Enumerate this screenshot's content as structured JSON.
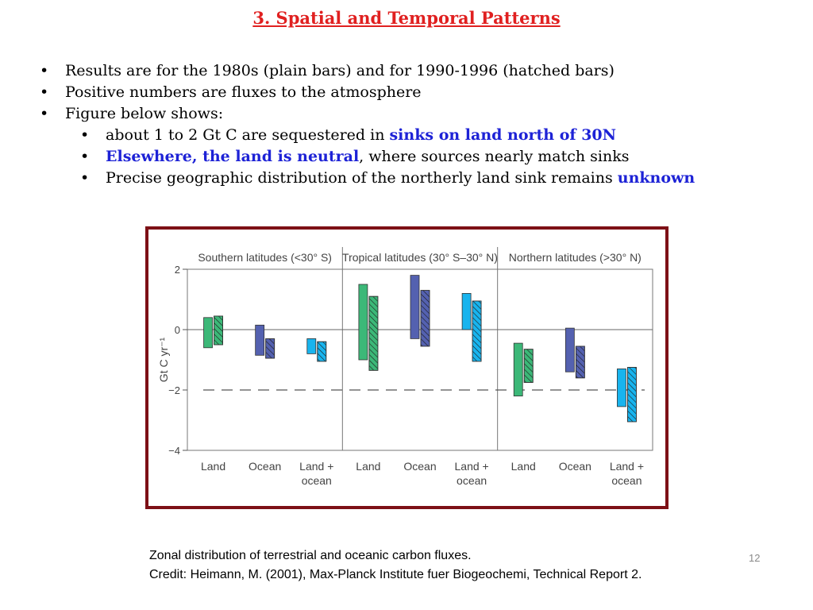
{
  "slide": {
    "title": "3. Spatial and Temporal Patterns",
    "bullets": [
      {
        "parts": [
          {
            "text": "Results are for the 1980s (plain bars) and for 1990-1996 (hatched bars)"
          }
        ]
      },
      {
        "parts": [
          {
            "text": "Positive numbers are fluxes to the atmosphere"
          }
        ]
      },
      {
        "parts": [
          {
            "text": "Figure below shows:"
          }
        ]
      }
    ],
    "sub_bullets": [
      {
        "parts": [
          {
            "text": "about 1 to 2 Gt C are sequestered in  "
          },
          {
            "text": "sinks on land north of 30N",
            "style": "blue"
          }
        ]
      },
      {
        "parts": [
          {
            "text": "Elsewhere, the land is neutral",
            "style": "blue"
          },
          {
            "text": ", where sources nearly match  sinks"
          }
        ]
      },
      {
        "parts": [
          {
            "text": "Precise geographic distribution of the northerly land sink remains "
          },
          {
            "text": "unknown",
            "style": "blue"
          }
        ]
      }
    ],
    "caption_line1": "Zonal distribution of terrestrial and oceanic carbon fluxes.",
    "caption_line2": "Credit: Heimann, M. (2001), Max-Planck Institute fuer Biogeochemi, Technical Report 2.",
    "page_number": "12"
  },
  "chart_data": {
    "type": "bar",
    "ylabel": "Gt C yr⁻¹",
    "ylim": [
      -4,
      2
    ],
    "yticks": [
      2,
      0,
      -2,
      -4
    ],
    "ytick_labels": [
      "2",
      "0",
      "−2",
      "−4"
    ],
    "reference_line_y": -2,
    "zones": [
      {
        "label": "Southern latitudes (<30° S)",
        "groups": [
          {
            "label": "Land",
            "color": "#3cb878",
            "plain": [
              -0.6,
              0.4
            ],
            "hatched": [
              -0.5,
              0.45
            ]
          },
          {
            "label": "Ocean",
            "color": "#5461b0",
            "plain": [
              -0.85,
              0.15
            ],
            "hatched": [
              -0.95,
              -0.3
            ]
          },
          {
            "label": "Land +\nocean",
            "color": "#18b4ee",
            "plain": [
              -0.8,
              -0.3
            ],
            "hatched": [
              -1.05,
              -0.4
            ]
          }
        ]
      },
      {
        "label": "Tropical latitudes (30° S–30° N)",
        "groups": [
          {
            "label": "Land",
            "color": "#3cb878",
            "plain": [
              -1.0,
              1.5
            ],
            "hatched": [
              -1.35,
              1.1
            ]
          },
          {
            "label": "Ocean",
            "color": "#5461b0",
            "plain": [
              -0.3,
              1.8
            ],
            "hatched": [
              -0.55,
              1.3
            ]
          },
          {
            "label": "Land +\nocean",
            "color": "#18b4ee",
            "plain": [
              0.0,
              1.2
            ],
            "hatched": [
              -1.05,
              0.95
            ]
          }
        ]
      },
      {
        "label": "Northern latitudes (>30° N)",
        "groups": [
          {
            "label": "Land",
            "color": "#3cb878",
            "plain": [
              -2.2,
              -0.45
            ],
            "hatched": [
              -1.75,
              -0.65
            ]
          },
          {
            "label": "Ocean",
            "color": "#5461b0",
            "plain": [
              -1.4,
              0.05
            ],
            "hatched": [
              -1.6,
              -0.55
            ]
          },
          {
            "label": "Land +\nocean",
            "color": "#18b4ee",
            "plain": [
              -2.55,
              -1.3
            ],
            "hatched": [
              -3.05,
              -1.25
            ]
          }
        ]
      }
    ]
  }
}
